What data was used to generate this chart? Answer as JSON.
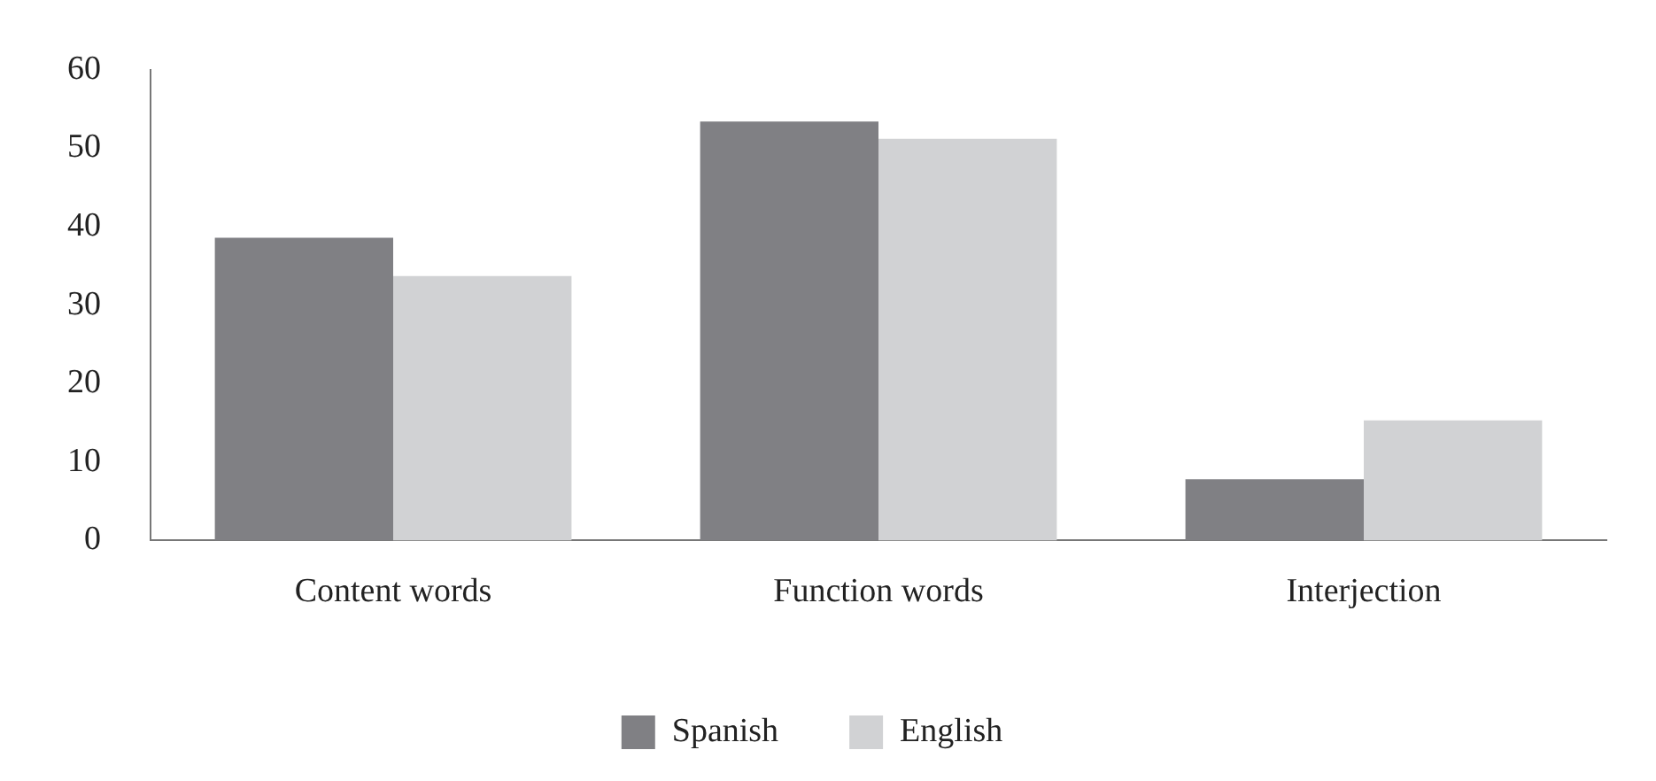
{
  "chart_data": {
    "type": "bar",
    "categories": [
      "Content words",
      "Function words",
      "Interjection"
    ],
    "series": [
      {
        "name": "Spanish",
        "color": "#808084",
        "values": [
          38.6,
          53.4,
          7.8
        ]
      },
      {
        "name": "English",
        "color": "#d1d2d4",
        "values": [
          33.7,
          51.2,
          15.3
        ]
      }
    ],
    "ylim": [
      0,
      60
    ],
    "yticks": [
      0,
      10,
      20,
      30,
      40,
      50,
      60
    ],
    "grid": false,
    "legend": "bottom"
  }
}
